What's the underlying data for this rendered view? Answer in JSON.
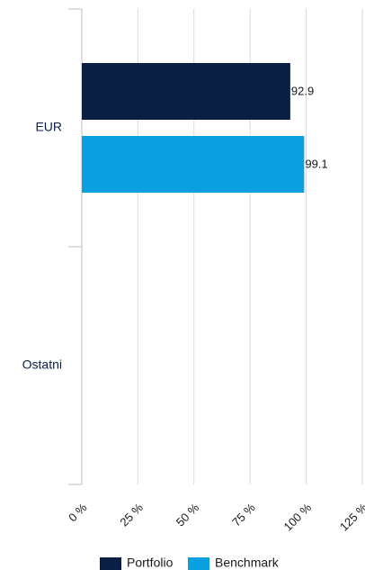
{
  "chart_data": {
    "type": "hbar",
    "categories": [
      "EUR",
      "Ostatni"
    ],
    "series": [
      {
        "name": "Portfolio",
        "color": "#0b1f45",
        "values": [
          92.9,
          null
        ]
      },
      {
        "name": "Benchmark",
        "color": "#0a9fdf",
        "values": [
          99.1,
          null
        ]
      }
    ],
    "xlim": [
      0,
      125
    ],
    "xticks": [
      {
        "value": 0,
        "label": "0 %"
      },
      {
        "value": 25,
        "label": "25 %"
      },
      {
        "value": 50,
        "label": "50 %"
      },
      {
        "value": 75,
        "label": "75 %"
      },
      {
        "value": 100,
        "label": "100 %"
      },
      {
        "value": 125,
        "label": "125 %"
      }
    ],
    "grid": true,
    "legend": "bottom"
  }
}
